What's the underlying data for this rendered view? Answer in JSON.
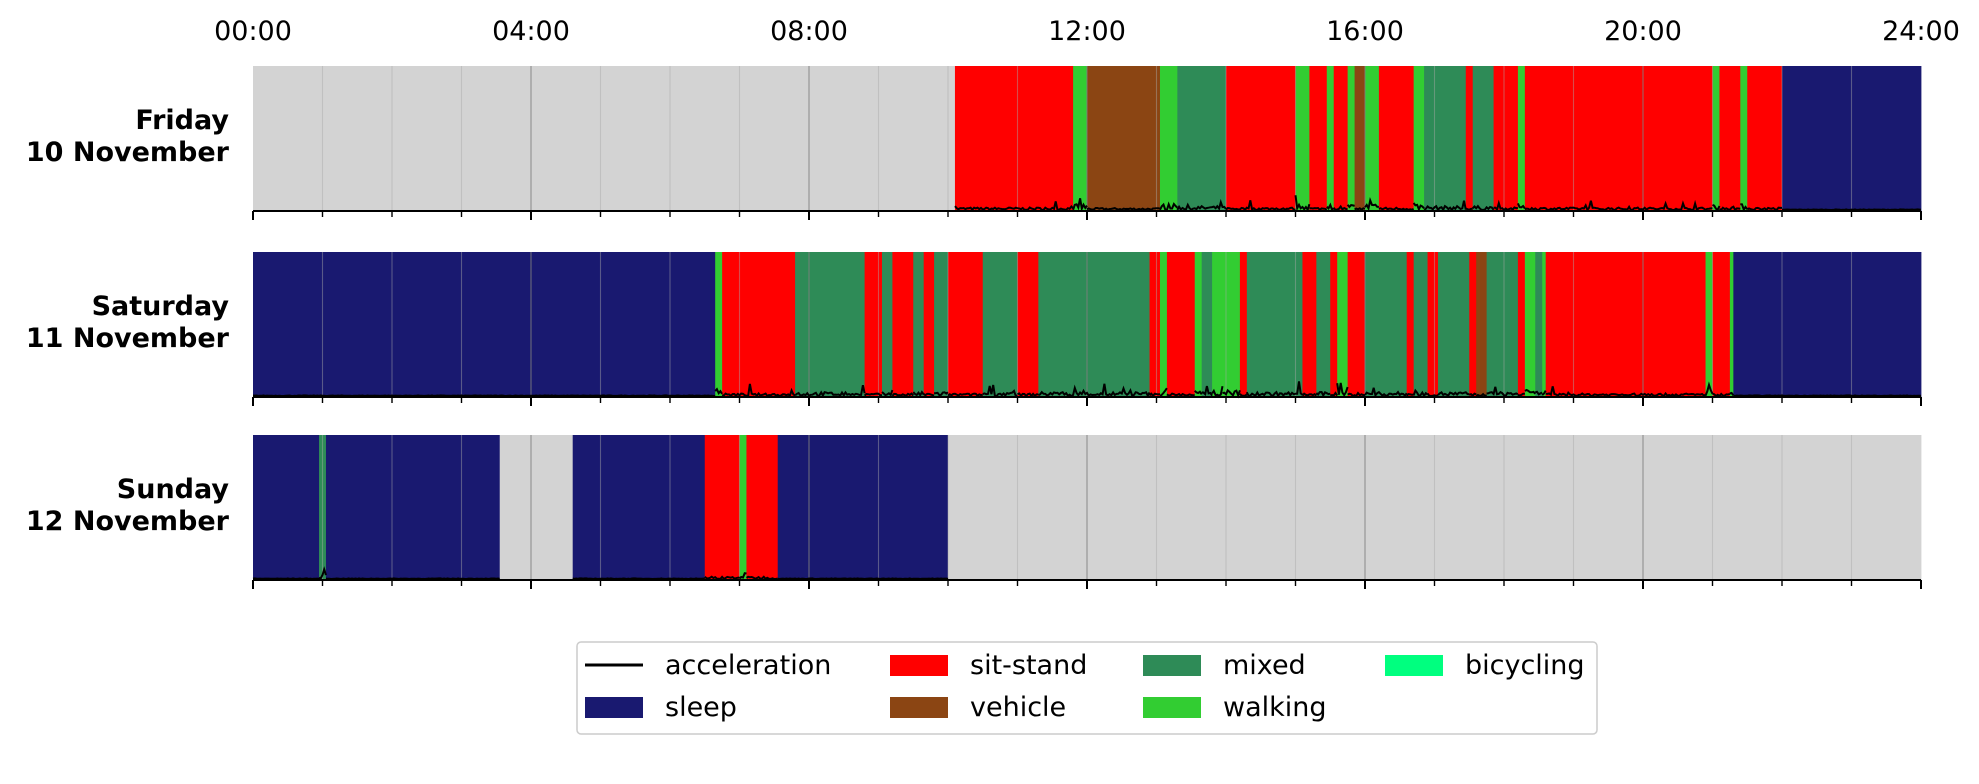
{
  "colors": {
    "background": "#ffffff",
    "nodata": "#d3d3d3",
    "acceleration": "#000000",
    "sleep": "#191970",
    "sit-stand": "#ff0000",
    "vehicle": "#8b4513",
    "mixed": "#2e8b57",
    "walking": "#32cd32",
    "bicycling": "#00ff7f",
    "grid_minor": "#a9a9a9",
    "grid_major": "#808080"
  },
  "chart_data": {
    "type": "timeline",
    "x_unit": "hours",
    "xlim": [
      0,
      24
    ],
    "x_ticks": [
      {
        "value": 0,
        "label": "00:00"
      },
      {
        "value": 4,
        "label": "04:00"
      },
      {
        "value": 8,
        "label": "08:00"
      },
      {
        "value": 12,
        "label": "12:00"
      },
      {
        "value": 16,
        "label": "16:00"
      },
      {
        "value": 20,
        "label": "20:00"
      },
      {
        "value": 24,
        "label": "24:00"
      }
    ],
    "legend": {
      "placement": "bottom-center",
      "entries": [
        {
          "key": "acceleration",
          "label": "acceleration",
          "kind": "line"
        },
        {
          "key": "sleep",
          "label": "sleep",
          "kind": "patch"
        },
        {
          "key": "sit-stand",
          "label": "sit-stand",
          "kind": "patch"
        },
        {
          "key": "vehicle",
          "label": "vehicle",
          "kind": "patch"
        },
        {
          "key": "mixed",
          "label": "mixed",
          "kind": "patch"
        },
        {
          "key": "walking",
          "label": "walking",
          "kind": "patch"
        },
        {
          "key": "bicycling",
          "label": "bicycling",
          "kind": "patch"
        }
      ]
    },
    "days": [
      {
        "label_line1": "Friday",
        "label_line2": "10 November",
        "segments": [
          {
            "start": 0,
            "end": 10.1,
            "activity": "nodata"
          },
          {
            "start": 10.1,
            "end": 11.8,
            "activity": "sit-stand"
          },
          {
            "start": 11.8,
            "end": 12.0,
            "activity": "walking"
          },
          {
            "start": 12.0,
            "end": 13.05,
            "activity": "vehicle"
          },
          {
            "start": 13.05,
            "end": 13.3,
            "activity": "walking"
          },
          {
            "start": 13.3,
            "end": 14.0,
            "activity": "mixed"
          },
          {
            "start": 14.0,
            "end": 15.0,
            "activity": "sit-stand"
          },
          {
            "start": 15.0,
            "end": 15.2,
            "activity": "walking"
          },
          {
            "start": 15.2,
            "end": 15.45,
            "activity": "sit-stand"
          },
          {
            "start": 15.45,
            "end": 15.55,
            "activity": "walking"
          },
          {
            "start": 15.55,
            "end": 15.75,
            "activity": "sit-stand"
          },
          {
            "start": 15.75,
            "end": 15.85,
            "activity": "walking"
          },
          {
            "start": 15.85,
            "end": 16.0,
            "activity": "vehicle"
          },
          {
            "start": 16.0,
            "end": 16.2,
            "activity": "walking"
          },
          {
            "start": 16.2,
            "end": 16.7,
            "activity": "sit-stand"
          },
          {
            "start": 16.7,
            "end": 16.85,
            "activity": "walking"
          },
          {
            "start": 16.85,
            "end": 17.45,
            "activity": "mixed"
          },
          {
            "start": 17.45,
            "end": 17.55,
            "activity": "sit-stand"
          },
          {
            "start": 17.55,
            "end": 17.85,
            "activity": "mixed"
          },
          {
            "start": 17.85,
            "end": 18.2,
            "activity": "sit-stand"
          },
          {
            "start": 18.2,
            "end": 18.3,
            "activity": "walking"
          },
          {
            "start": 18.3,
            "end": 21.0,
            "activity": "sit-stand"
          },
          {
            "start": 21.0,
            "end": 21.1,
            "activity": "walking"
          },
          {
            "start": 21.1,
            "end": 21.4,
            "activity": "sit-stand"
          },
          {
            "start": 21.4,
            "end": 21.5,
            "activity": "walking"
          },
          {
            "start": 21.5,
            "end": 22.0,
            "activity": "sit-stand"
          },
          {
            "start": 22.0,
            "end": 24.0,
            "activity": "sleep"
          }
        ]
      },
      {
        "label_line1": "Saturday",
        "label_line2": "11 November",
        "segments": [
          {
            "start": 0,
            "end": 6.65,
            "activity": "sleep"
          },
          {
            "start": 6.65,
            "end": 6.75,
            "activity": "walking"
          },
          {
            "start": 6.75,
            "end": 7.8,
            "activity": "sit-stand"
          },
          {
            "start": 7.8,
            "end": 8.8,
            "activity": "mixed"
          },
          {
            "start": 8.8,
            "end": 9.05,
            "activity": "sit-stand"
          },
          {
            "start": 9.05,
            "end": 9.2,
            "activity": "mixed"
          },
          {
            "start": 9.2,
            "end": 9.5,
            "activity": "sit-stand"
          },
          {
            "start": 9.5,
            "end": 9.65,
            "activity": "mixed"
          },
          {
            "start": 9.65,
            "end": 9.8,
            "activity": "sit-stand"
          },
          {
            "start": 9.8,
            "end": 10.0,
            "activity": "mixed"
          },
          {
            "start": 10.0,
            "end": 10.5,
            "activity": "sit-stand"
          },
          {
            "start": 10.5,
            "end": 11.0,
            "activity": "mixed"
          },
          {
            "start": 11.0,
            "end": 11.3,
            "activity": "sit-stand"
          },
          {
            "start": 11.3,
            "end": 12.9,
            "activity": "mixed"
          },
          {
            "start": 12.9,
            "end": 13.05,
            "activity": "sit-stand"
          },
          {
            "start": 13.05,
            "end": 13.15,
            "activity": "walking"
          },
          {
            "start": 13.15,
            "end": 13.55,
            "activity": "sit-stand"
          },
          {
            "start": 13.55,
            "end": 13.65,
            "activity": "walking"
          },
          {
            "start": 13.65,
            "end": 13.8,
            "activity": "mixed"
          },
          {
            "start": 13.8,
            "end": 13.95,
            "activity": "walking"
          },
          {
            "start": 13.95,
            "end": 14.2,
            "activity": "walking"
          },
          {
            "start": 14.2,
            "end": 14.3,
            "activity": "sit-stand"
          },
          {
            "start": 14.3,
            "end": 15.1,
            "activity": "mixed"
          },
          {
            "start": 15.1,
            "end": 15.3,
            "activity": "sit-stand"
          },
          {
            "start": 15.3,
            "end": 15.5,
            "activity": "mixed"
          },
          {
            "start": 15.5,
            "end": 15.6,
            "activity": "sit-stand"
          },
          {
            "start": 15.6,
            "end": 15.75,
            "activity": "walking"
          },
          {
            "start": 15.75,
            "end": 16.0,
            "activity": "sit-stand"
          },
          {
            "start": 16.0,
            "end": 16.6,
            "activity": "mixed"
          },
          {
            "start": 16.6,
            "end": 16.7,
            "activity": "sit-stand"
          },
          {
            "start": 16.7,
            "end": 16.9,
            "activity": "mixed"
          },
          {
            "start": 16.9,
            "end": 17.05,
            "activity": "sit-stand"
          },
          {
            "start": 17.05,
            "end": 17.5,
            "activity": "mixed"
          },
          {
            "start": 17.5,
            "end": 17.6,
            "activity": "sit-stand"
          },
          {
            "start": 17.6,
            "end": 17.75,
            "activity": "vehicle"
          },
          {
            "start": 17.75,
            "end": 18.2,
            "activity": "mixed"
          },
          {
            "start": 18.2,
            "end": 18.3,
            "activity": "sit-stand"
          },
          {
            "start": 18.3,
            "end": 18.45,
            "activity": "walking"
          },
          {
            "start": 18.45,
            "end": 18.55,
            "activity": "mixed"
          },
          {
            "start": 18.55,
            "end": 18.6,
            "activity": "walking"
          },
          {
            "start": 18.6,
            "end": 20.9,
            "activity": "sit-stand"
          },
          {
            "start": 20.9,
            "end": 21.0,
            "activity": "walking"
          },
          {
            "start": 21.0,
            "end": 21.25,
            "activity": "sit-stand"
          },
          {
            "start": 21.25,
            "end": 21.3,
            "activity": "walking"
          },
          {
            "start": 21.3,
            "end": 24.0,
            "activity": "sleep"
          }
        ]
      },
      {
        "label_line1": "Sunday",
        "label_line2": "12 November",
        "segments": [
          {
            "start": 0,
            "end": 0.95,
            "activity": "sleep"
          },
          {
            "start": 0.95,
            "end": 1.05,
            "activity": "mixed"
          },
          {
            "start": 1.05,
            "end": 3.55,
            "activity": "sleep"
          },
          {
            "start": 3.55,
            "end": 4.6,
            "activity": "nodata"
          },
          {
            "start": 4.6,
            "end": 6.5,
            "activity": "sleep"
          },
          {
            "start": 6.5,
            "end": 7.0,
            "activity": "sit-stand"
          },
          {
            "start": 7.0,
            "end": 7.1,
            "activity": "walking"
          },
          {
            "start": 7.1,
            "end": 7.55,
            "activity": "sit-stand"
          },
          {
            "start": 7.55,
            "end": 10.0,
            "activity": "sleep"
          },
          {
            "start": 10.0,
            "end": 24.0,
            "activity": "nodata"
          }
        ]
      }
    ]
  }
}
